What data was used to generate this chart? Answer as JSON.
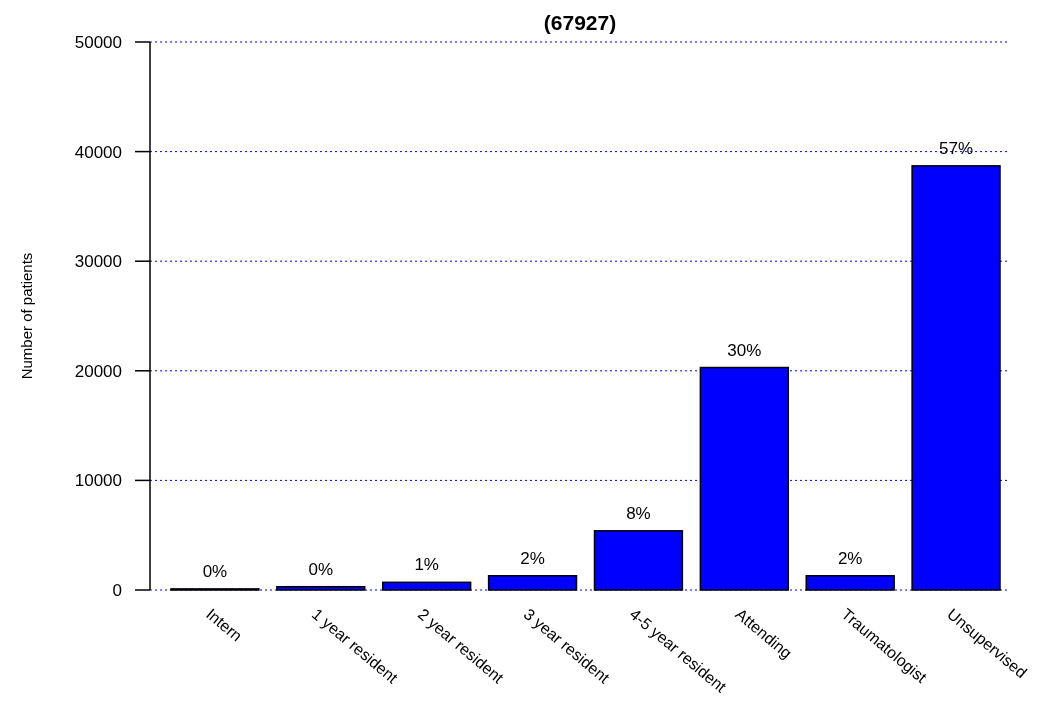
{
  "chart_data": {
    "type": "bar",
    "title": "(67927)",
    "ylabel": "Number of patients",
    "categories": [
      "Intern",
      "1 year resident",
      "2 year resident",
      "3 year resident",
      "4-5 year resident",
      "Attending",
      "Traumatologist",
      "Unsupervised"
    ],
    "values": [
      100,
      300,
      700,
      1300,
      5400,
      20300,
      1300,
      38700
    ],
    "annotations": [
      {
        "text": "0%",
        "x": "Intern",
        "y": 100
      },
      {
        "text": "0%",
        "x": "1 year resident",
        "y": 300
      },
      {
        "text": "1%",
        "x": "2 year resident",
        "y": 700
      },
      {
        "text": "2%",
        "x": "3 year resident",
        "y": 1300
      },
      {
        "text": "8%",
        "x": "4-5 year resident",
        "y": 5400
      },
      {
        "text": "30%",
        "x": "Attending",
        "y": 20300
      },
      {
        "text": "2%",
        "x": "Traumatologist",
        "y": 1300
      },
      {
        "text": "57%",
        "x": "Unsupervised",
        "y": 38700
      }
    ],
    "color": "#0000ff",
    "ylim": [
      0,
      50000
    ],
    "yticks": [
      0,
      10000,
      20000,
      30000,
      40000,
      50000
    ],
    "grid": "y"
  }
}
